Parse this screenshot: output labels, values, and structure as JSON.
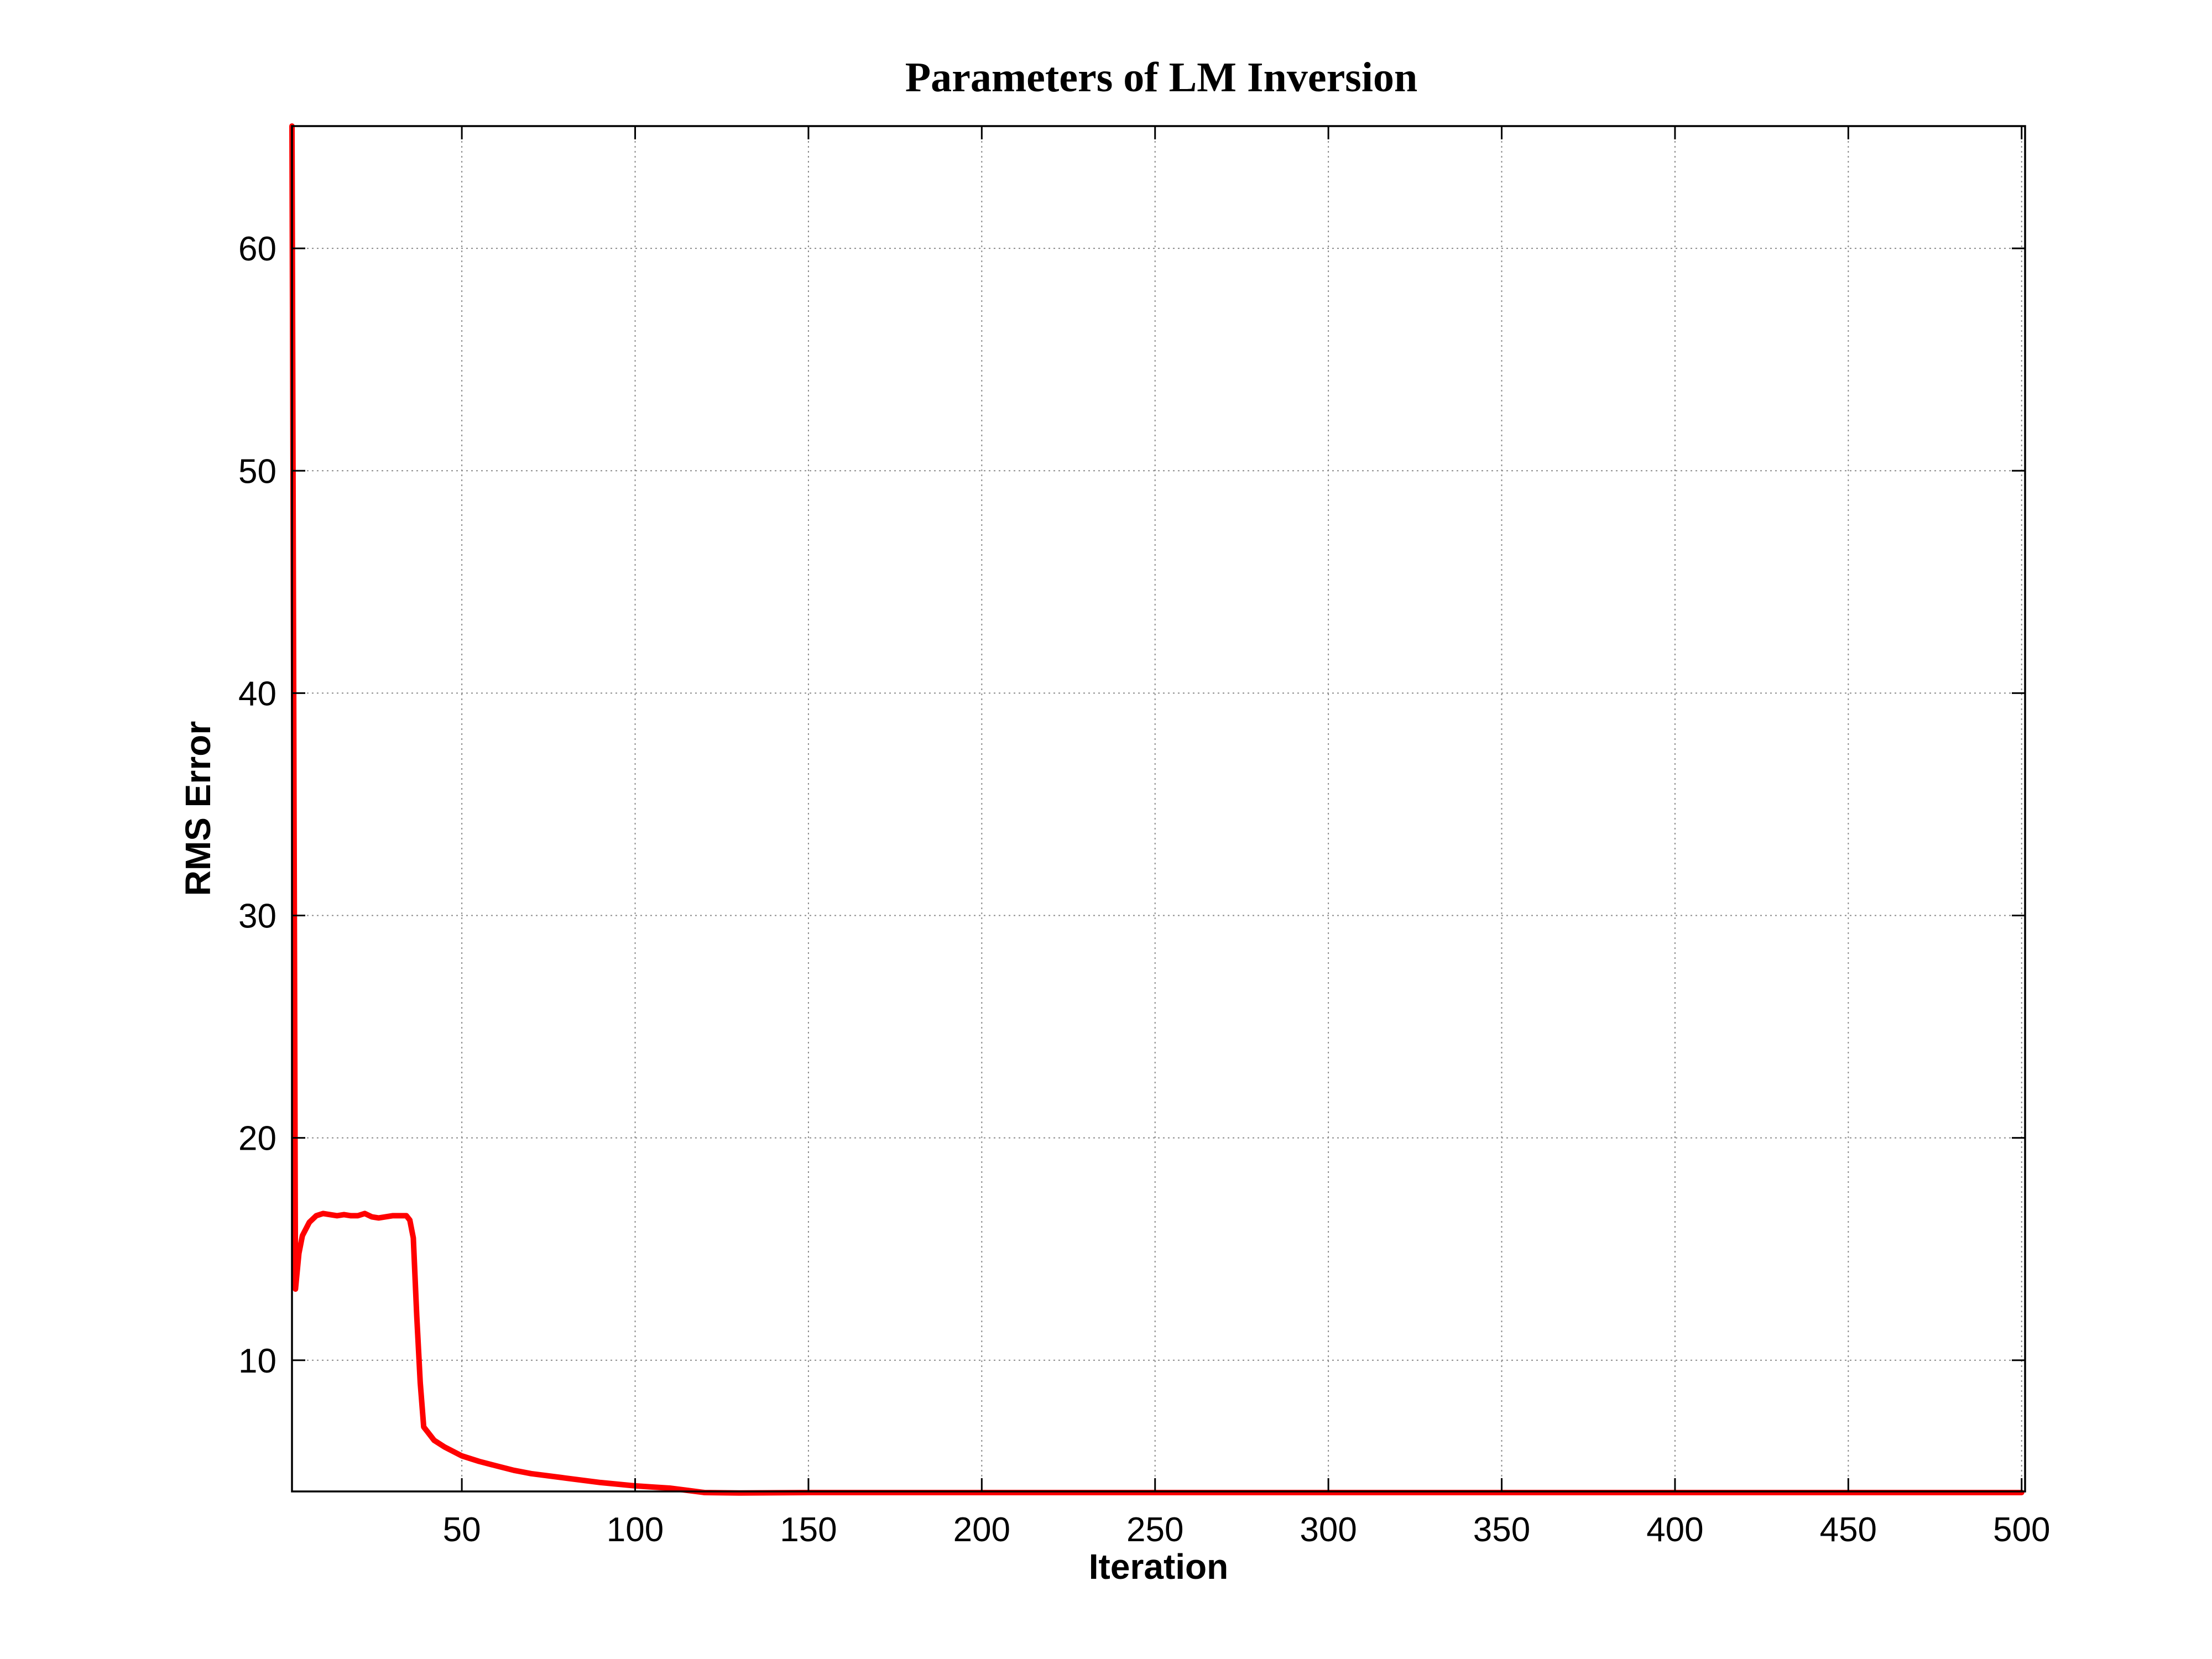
{
  "chart_data": {
    "type": "line",
    "title": "Parameters of LM Inversion",
    "xlabel": "Iteration",
    "ylabel": "RMS Error",
    "xlim": [
      1,
      501
    ],
    "ylim": [
      4.1,
      65.5
    ],
    "xticks": [
      50,
      100,
      150,
      200,
      250,
      300,
      350,
      400,
      450,
      500
    ],
    "yticks": [
      10,
      20,
      30,
      40,
      50,
      60
    ],
    "grid": true,
    "line_color": "#ff0000",
    "series": [
      {
        "x": [
          1,
          2,
          3,
          4,
          6,
          8,
          10,
          12,
          14,
          16,
          18,
          20,
          22,
          24,
          26,
          28,
          30,
          32,
          34,
          35,
          36,
          37,
          38,
          39,
          40,
          42,
          45,
          50,
          55,
          60,
          65,
          70,
          80,
          90,
          100,
          105,
          110,
          115,
          120,
          130,
          150,
          200,
          250,
          300,
          350,
          400,
          450,
          500
        ],
        "values": [
          65.5,
          13.2,
          14.8,
          15.6,
          16.2,
          16.5,
          16.6,
          16.55,
          16.5,
          16.55,
          16.5,
          16.5,
          16.6,
          16.45,
          16.4,
          16.45,
          16.5,
          16.5,
          16.5,
          16.3,
          15.5,
          12.0,
          9.0,
          7.0,
          6.8,
          6.4,
          6.1,
          5.7,
          5.45,
          5.25,
          5.05,
          4.9,
          4.7,
          4.5,
          4.35,
          4.3,
          4.25,
          4.15,
          4.05,
          4.03,
          4.05,
          4.05,
          4.05,
          4.05,
          4.05,
          4.05,
          4.05,
          4.05
        ]
      }
    ]
  }
}
